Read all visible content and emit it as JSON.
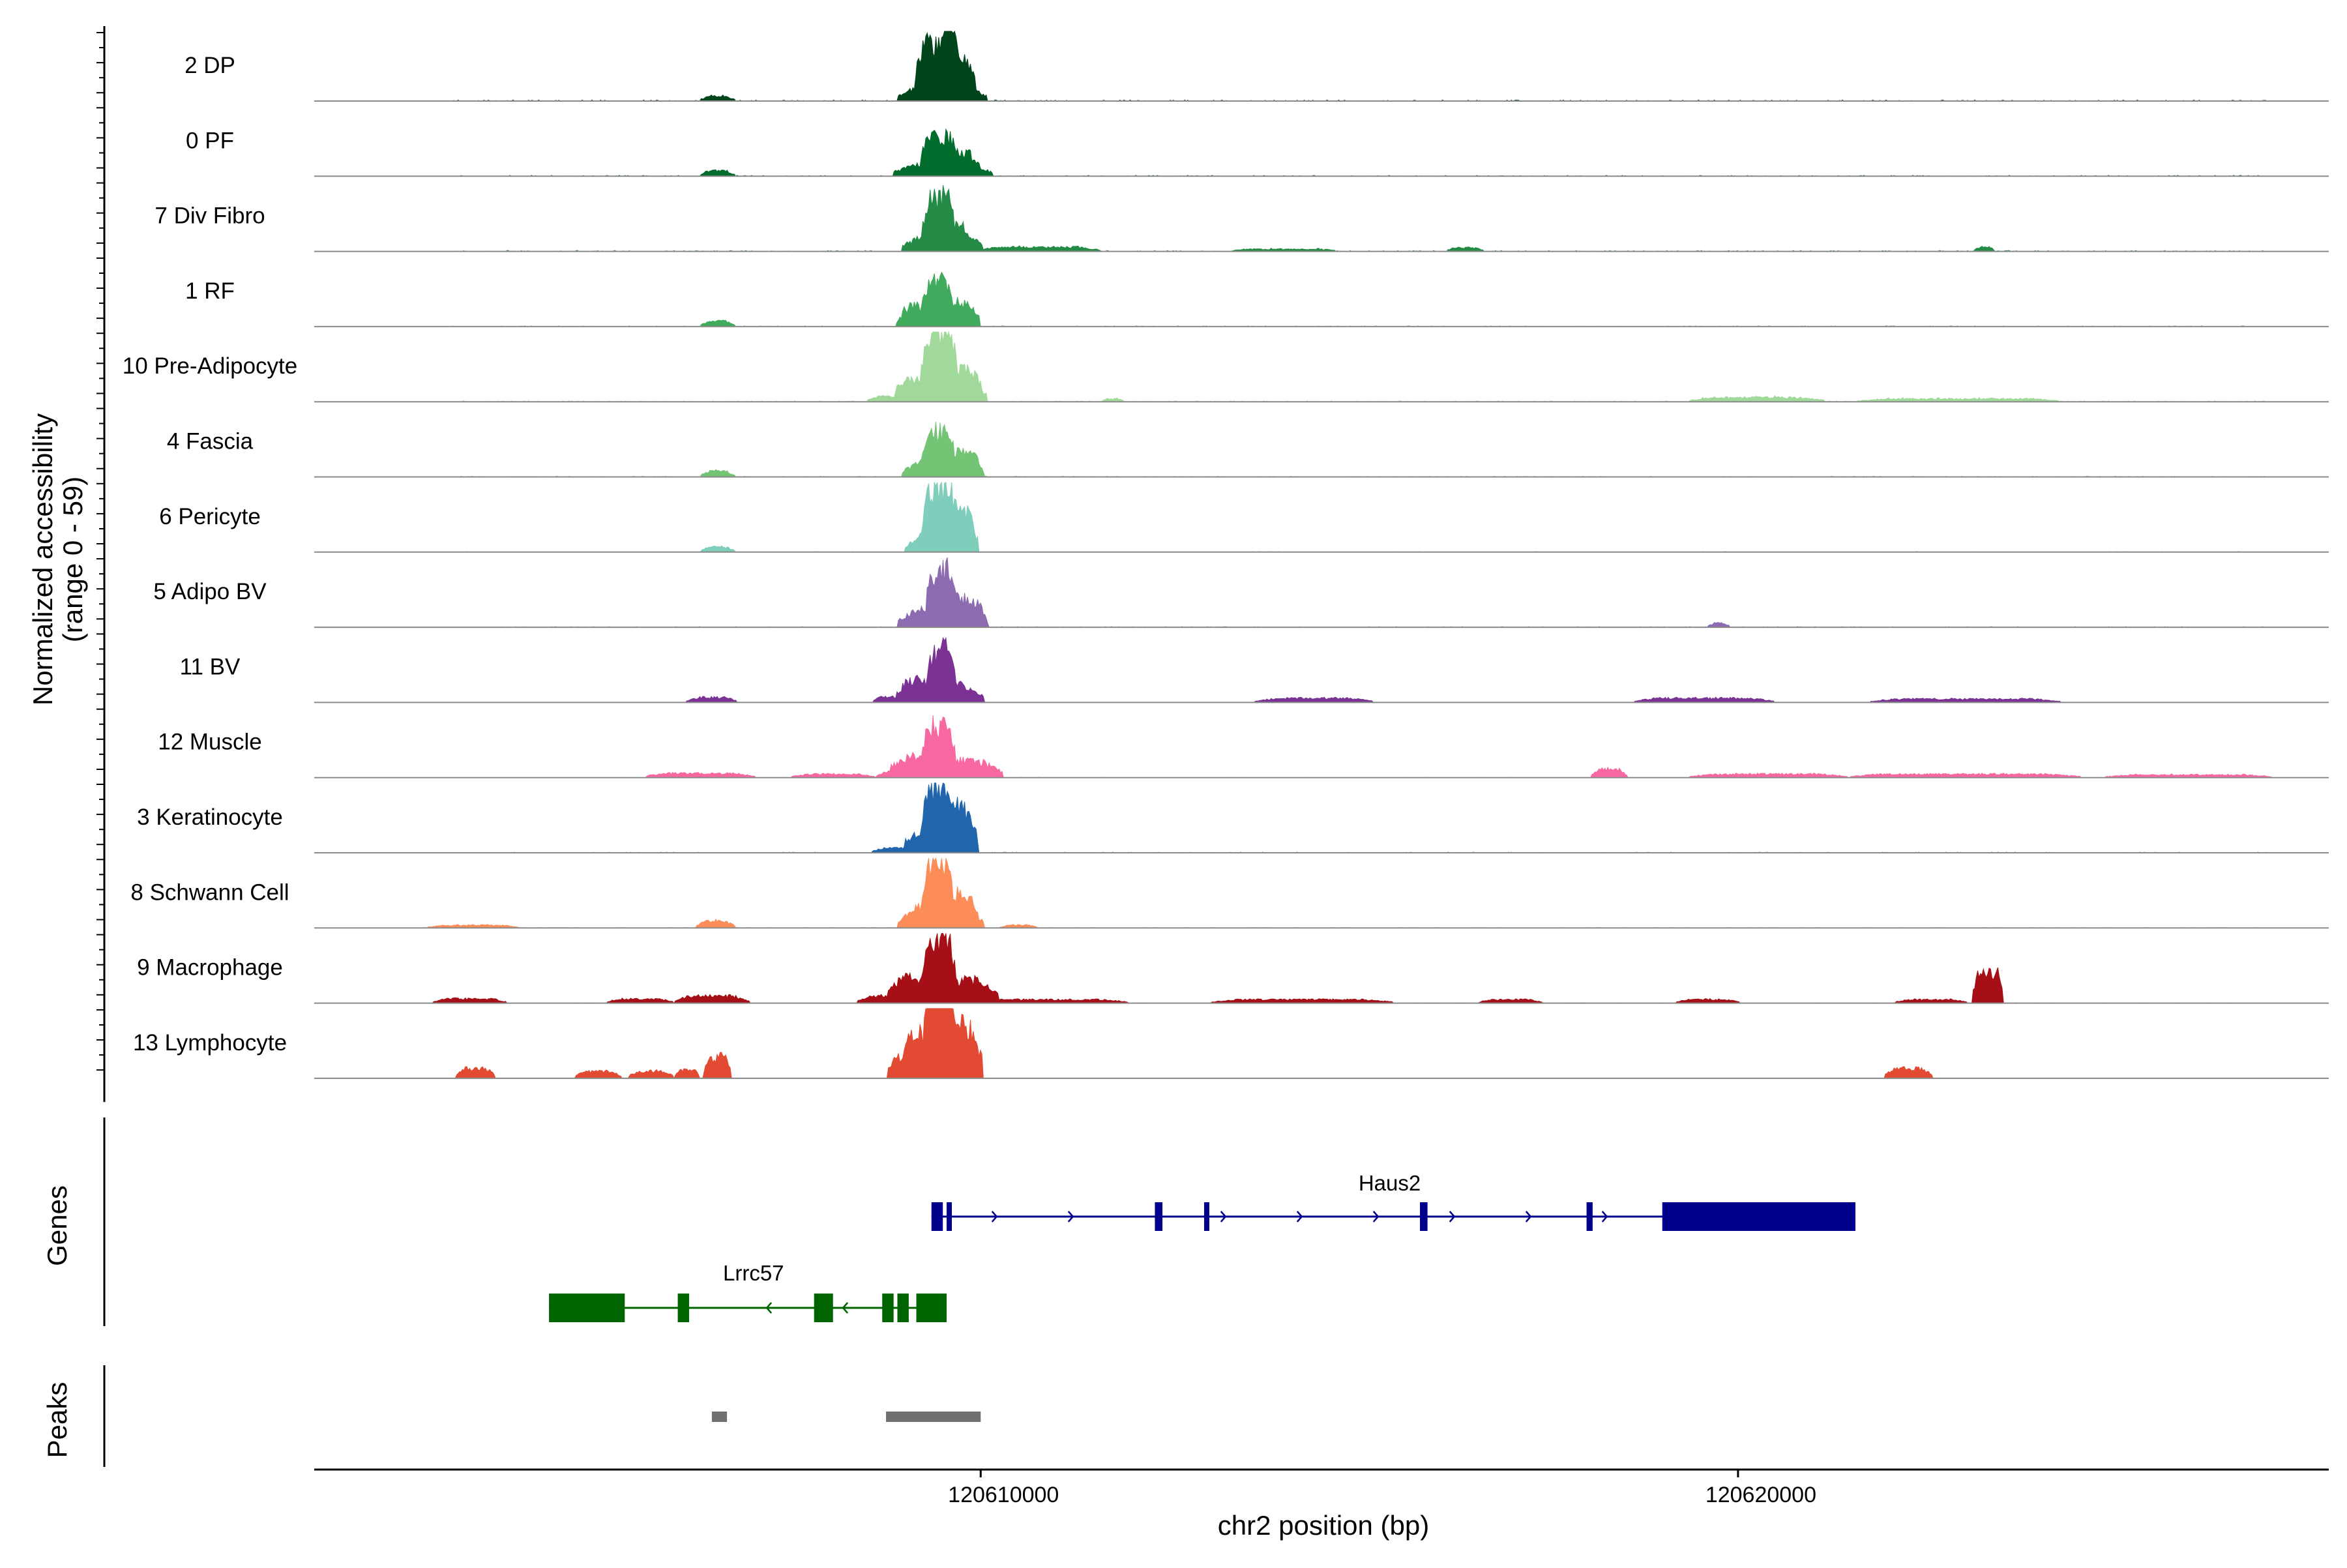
{
  "chart_data": {
    "type": "area",
    "title": "",
    "ylabel_line1": "Normalized accessibility",
    "ylabel_line2": "(range 0 - 59)",
    "y_range": [
      0,
      59
    ],
    "xlabel": "chr2 position (bp)",
    "chromosome": "chr2",
    "xlim": [
      120601200,
      120627800
    ],
    "x_ticks": [
      120610000,
      120620000
    ],
    "x_tick_labels": [
      "120610000",
      "120620000"
    ],
    "tracks": [
      {
        "name": "2 DP",
        "color": "#00441b",
        "peaks": [
          [
            120609300,
            120609700,
            22,
            260
          ],
          [
            120609300,
            120609550,
            60,
            110
          ],
          [
            120609600,
            120609800,
            38,
            90
          ],
          [
            120606450,
            120606600,
            7,
            100
          ]
        ],
        "noise": [
          [
            120603000,
            120627000,
            1.5,
            0.18
          ]
        ]
      },
      {
        "name": "0 PF",
        "color": "#006d2c",
        "peaks": [
          [
            120609300,
            120609700,
            18,
            300
          ],
          [
            120609350,
            120609530,
            38,
            90
          ],
          [
            120609700,
            120609850,
            15,
            90
          ],
          [
            120606450,
            120606600,
            8,
            100
          ]
        ],
        "noise": [
          [
            120603000,
            120627000,
            1.5,
            0.15
          ]
        ]
      },
      {
        "name": "7 Div Fibro",
        "color": "#238b45",
        "peaks": [
          [
            120609300,
            120609700,
            22,
            220
          ],
          [
            120609350,
            120609520,
            52,
            80
          ],
          [
            120609600,
            120609750,
            18,
            70
          ],
          [
            120610300,
            120611200,
            6,
            250
          ],
          [
            120616300,
            120616500,
            5,
            90
          ],
          [
            120613500,
            120614500,
            3,
            120
          ],
          [
            120623200,
            120623300,
            6,
            60
          ]
        ],
        "noise": [
          [
            120603000,
            120627000,
            1.2,
            0.2
          ]
        ]
      },
      {
        "name": "1 RF",
        "color": "#41ab5d",
        "peaks": [
          [
            120609300,
            120609650,
            22,
            230
          ],
          [
            120609350,
            120609500,
            45,
            80
          ],
          [
            120609000,
            120609100,
            15,
            80
          ],
          [
            120609700,
            120609850,
            14,
            90
          ],
          [
            120606450,
            120606600,
            8,
            100
          ]
        ],
        "noise": [
          [
            120603000,
            120627000,
            1.2,
            0.15
          ]
        ]
      },
      {
        "name": "10 Pre-Adipocyte",
        "color": "#a1d99b",
        "peaks": [
          [
            120609350,
            120609550,
            72,
            90
          ],
          [
            120609250,
            120609700,
            30,
            260
          ],
          [
            120609700,
            120609900,
            18,
            90
          ],
          [
            120608700,
            120609000,
            8,
            130
          ],
          [
            120619800,
            120620700,
            6,
            300
          ],
          [
            120622000,
            120623800,
            4,
            280
          ],
          [
            120611700,
            120611800,
            4,
            60
          ]
        ],
        "noise": [
          [
            120603000,
            120627000,
            1.2,
            0.2
          ]
        ]
      },
      {
        "name": "4 Fascia",
        "color": "#74c476",
        "peaks": [
          [
            120609300,
            120609700,
            22,
            230
          ],
          [
            120609350,
            120609520,
            45,
            80
          ],
          [
            120609700,
            120609900,
            16,
            90
          ],
          [
            120606450,
            120606600,
            8,
            100
          ]
        ],
        "noise": [
          [
            120603000,
            120627000,
            1.2,
            0.15
          ]
        ]
      },
      {
        "name": "6 Pericyte",
        "color": "#7fcdbb",
        "peaks": [
          [
            120609300,
            120609600,
            25,
            200
          ],
          [
            120609350,
            120609500,
            62,
            80
          ],
          [
            120609650,
            120609850,
            45,
            80
          ],
          [
            120606450,
            120606600,
            7,
            100
          ]
        ],
        "noise": [
          [
            120603000,
            120627000,
            1.0,
            0.15
          ]
        ]
      },
      {
        "name": "5 Adipo BV",
        "color": "#8c6bb1",
        "peaks": [
          [
            120609300,
            120609700,
            28,
            260
          ],
          [
            120609400,
            120609550,
            52,
            80
          ],
          [
            120609700,
            120609950,
            15,
            100
          ],
          [
            120619700,
            120619800,
            6,
            60
          ]
        ],
        "noise": [
          [
            120603000,
            120627000,
            1.0,
            0.15
          ]
        ]
      },
      {
        "name": "11 BV",
        "color": "#7b3294",
        "peaks": [
          [
            120609300,
            120609700,
            25,
            230
          ],
          [
            120609400,
            120609550,
            50,
            80
          ],
          [
            120609000,
            120609150,
            16,
            80
          ],
          [
            120608700,
            120608850,
            8,
            80
          ],
          [
            120606300,
            120606600,
            7,
            120
          ],
          [
            120614000,
            120614800,
            6,
            250
          ],
          [
            120619000,
            120620100,
            6,
            250
          ],
          [
            120622200,
            120623800,
            5,
            300
          ]
        ],
        "noise": [
          [
            120603000,
            120627000,
            0.4,
            0.1
          ]
        ]
      },
      {
        "name": "12 Muscle",
        "color": "#f768a1",
        "peaks": [
          [
            120609350,
            120609550,
            48,
            80
          ],
          [
            120609200,
            120609900,
            24,
            260
          ],
          [
            120608800,
            120609100,
            8,
            120
          ],
          [
            120618200,
            120618400,
            12,
            90
          ],
          [
            120605900,
            120606700,
            6,
            220
          ],
          [
            120607800,
            120608300,
            5,
            200
          ],
          [
            120619800,
            120621000,
            5,
            300
          ],
          [
            120622000,
            120624000,
            5,
            350
          ],
          [
            120625300,
            120626600,
            4,
            300
          ]
        ],
        "noise": [
          [
            120605000,
            120627000,
            0.6,
            0.12
          ]
        ]
      },
      {
        "name": "3 Keratinocyte",
        "color": "#2166ac",
        "peaks": [
          [
            120609300,
            120609650,
            28,
            200
          ],
          [
            120609350,
            120609520,
            58,
            80
          ],
          [
            120609700,
            120609850,
            38,
            80
          ],
          [
            120608800,
            120609200,
            7,
            160
          ]
        ],
        "noise": [
          [
            120603000,
            120627000,
            1.0,
            0.15
          ]
        ]
      },
      {
        "name": "8 Schwann Cell",
        "color": "#fc8d59",
        "peaks": [
          [
            120609250,
            120609700,
            30,
            230
          ],
          [
            120609350,
            120609500,
            65,
            80
          ],
          [
            120609700,
            120609850,
            18,
            80
          ],
          [
            120606400,
            120606600,
            10,
            100
          ],
          [
            120603000,
            120603600,
            4,
            200
          ],
          [
            120610400,
            120610600,
            4,
            100
          ]
        ],
        "noise": [
          [
            120603000,
            120627000,
            0.8,
            0.12
          ]
        ]
      },
      {
        "name": "9 Macrophage",
        "color": "#a50f15",
        "peaks": [
          [
            120609350,
            120609550,
            65,
            80
          ],
          [
            120609100,
            120609900,
            28,
            220
          ],
          [
            120608600,
            120609000,
            10,
            150
          ],
          [
            120623200,
            120623400,
            45,
            70
          ],
          [
            120606200,
            120606700,
            10,
            160
          ],
          [
            120603000,
            120603500,
            6,
            160
          ],
          [
            120605300,
            120605700,
            6,
            160
          ],
          [
            120610000,
            120611500,
            5,
            300
          ],
          [
            120613500,
            120615000,
            5,
            300
          ],
          [
            120616800,
            120617200,
            5,
            150
          ],
          [
            120619400,
            120619800,
            5,
            150
          ],
          [
            120622300,
            120622800,
            5,
            150
          ]
        ],
        "noise": [
          [
            120603000,
            120627000,
            0.6,
            0.12
          ]
        ]
      },
      {
        "name": "13 Lymphocyte",
        "color": "#e34a33",
        "peaks": [
          [
            120609350,
            120609550,
            100,
            70
          ],
          [
            120609250,
            120609750,
            50,
            180
          ],
          [
            120608900,
            120609100,
            30,
            90
          ],
          [
            120609700,
            120609900,
            28,
            90
          ],
          [
            120606450,
            120606600,
            30,
            70
          ],
          [
            120603200,
            120603450,
            14,
            90
          ],
          [
            120604800,
            120605100,
            10,
            100
          ],
          [
            120605500,
            120605800,
            10,
            100
          ],
          [
            120606050,
            120606200,
            12,
            60
          ],
          [
            120622100,
            120622400,
            14,
            110
          ]
        ],
        "noise": [
          [
            120603000,
            120627000,
            0.2,
            0.08
          ]
        ]
      }
    ],
    "genes_label": "Genes",
    "genes": [
      {
        "name": "Haus2",
        "color": "#00008b",
        "strand": "+",
        "start": 120609350,
        "end": 120621550,
        "exons": [
          [
            120609350,
            120609500
          ],
          [
            120609550,
            120609600
          ],
          [
            120612300,
            120612400
          ],
          [
            120612950,
            120613000
          ],
          [
            120615800,
            120615900
          ],
          [
            120618000,
            120618080
          ],
          [
            120619000,
            120621550
          ]
        ]
      },
      {
        "name": "Lrrc57",
        "color": "#006400",
        "strand": "-",
        "start": 120604300,
        "end": 120609550,
        "exons": [
          [
            120604300,
            120605300
          ],
          [
            120606000,
            120606150
          ],
          [
            120607800,
            120608050
          ],
          [
            120608700,
            120608850
          ],
          [
            120608900,
            120609050
          ],
          [
            120609150,
            120609550
          ]
        ]
      }
    ],
    "peaks_label": "Peaks",
    "peak_regions": [
      [
        120606450,
        120606650
      ],
      [
        120608750,
        120610000
      ]
    ]
  }
}
